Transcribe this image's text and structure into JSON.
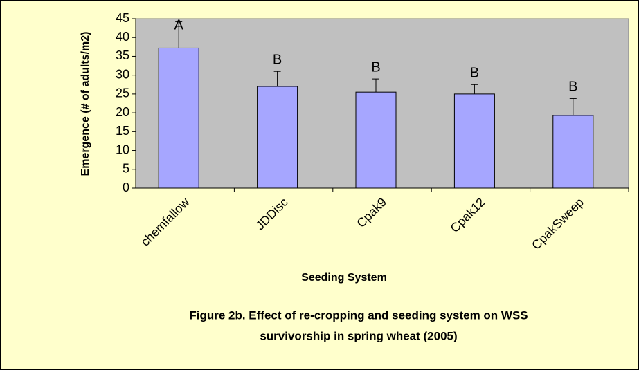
{
  "chart_data": {
    "type": "bar",
    "y_axis_label": "Emergence (# of adults/m2)",
    "x_axis_label": "Seeding System",
    "caption": [
      "Figure 2b.  Effect of re-cropping and seeding system on WSS",
      "survivorship in spring wheat (2005)"
    ],
    "categories": [
      "chemfallow",
      "JDDisc",
      "Cpak9",
      "Cpak12",
      "CpakSweep"
    ],
    "values": [
      37.2,
      27,
      25.5,
      25,
      19.3
    ],
    "errors": [
      7,
      4,
      3.5,
      2.5,
      4.5
    ],
    "letters": [
      "A",
      "B",
      "B",
      "B",
      "B"
    ],
    "color": "#A6A6FF",
    "ylim": [
      0,
      45
    ],
    "yticks": [
      0,
      5,
      10,
      15,
      20,
      25,
      30,
      35,
      40,
      45
    ]
  }
}
